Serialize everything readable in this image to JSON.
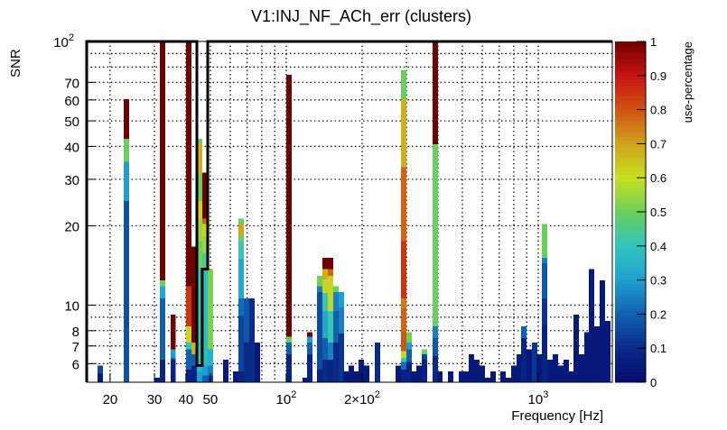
{
  "chart_data": {
    "type": "heatmap",
    "title": "V1:INJ_NF_ACh_err (clusters)",
    "xlabel": "Frequency [Hz]",
    "ylabel": "SNR",
    "zlabel": "use-percentage",
    "xscale": "log",
    "yscale": "log",
    "xlim": [
      16.15,
      1968
    ],
    "ylim": [
      5.1,
      100
    ],
    "zlim": [
      0,
      1
    ],
    "grid": true,
    "x_ticks": [
      {
        "value": 20,
        "label": "20"
      },
      {
        "value": 30,
        "label": "30"
      },
      {
        "value": 40,
        "label": "40"
      },
      {
        "value": 50,
        "label": "50"
      },
      {
        "value": 100,
        "label": "10",
        "sup": "2"
      },
      {
        "value": 200,
        "label": "2×10",
        "sup": "2"
      },
      {
        "value": 1000,
        "label": "10",
        "sup": "3"
      }
    ],
    "x_grid": [
      20,
      30,
      40,
      50,
      60,
      70,
      80,
      90,
      100,
      200,
      300,
      400,
      500,
      600,
      700,
      800,
      900,
      1000
    ],
    "y_ticks": [
      {
        "value": 6,
        "label": "6"
      },
      {
        "value": 7,
        "label": "7"
      },
      {
        "value": 8,
        "label": "8"
      },
      {
        "value": 10,
        "label": "10"
      },
      {
        "value": 20,
        "label": "20"
      },
      {
        "value": 30,
        "label": "30"
      },
      {
        "value": 40,
        "label": "40"
      },
      {
        "value": 50,
        "label": "50"
      },
      {
        "value": 60,
        "label": "60"
      },
      {
        "value": 70,
        "label": "70"
      },
      {
        "value": 100,
        "label": "10",
        "sup": "2"
      }
    ],
    "y_grid": [
      6,
      7,
      8,
      9,
      10,
      20,
      30,
      40,
      50,
      60,
      70,
      80,
      90
    ],
    "z_ticks": [
      "0",
      "0.1",
      "0.2",
      "0.3",
      "0.4",
      "0.5",
      "0.6",
      "0.7",
      "0.8",
      "0.9",
      "1"
    ],
    "colormap": [
      [
        0.0,
        "#05096a"
      ],
      [
        0.1,
        "#0a2a88"
      ],
      [
        0.2,
        "#1060b0"
      ],
      [
        0.3,
        "#1fa0d0"
      ],
      [
        0.4,
        "#2ec4c0"
      ],
      [
        0.5,
        "#6acf5c"
      ],
      [
        0.6,
        "#c6e020"
      ],
      [
        0.7,
        "#d0a41c"
      ],
      [
        0.8,
        "#d05410"
      ],
      [
        0.9,
        "#c81410"
      ],
      [
        1.0,
        "#700000"
      ]
    ],
    "bin_width_log10": 0.0209,
    "columns": [
      {
        "f": 18.3,
        "seg": [
          [
            5.5,
            0.05
          ],
          [
            5.9,
            0.15
          ]
        ]
      },
      {
        "f": 23.2,
        "seg": [
          [
            24.8,
            0.17
          ],
          [
            35,
            0.3
          ],
          [
            42.7,
            0.5
          ],
          [
            60.4,
            1.0
          ]
        ]
      },
      {
        "f": 30.7,
        "seg": [
          [
            5.3,
            0.05
          ]
        ]
      },
      {
        "f": 32.3,
        "seg": [
          [
            6.2,
            0.08
          ],
          [
            10.6,
            0.2
          ],
          [
            11.8,
            0.32
          ],
          [
            12.4,
            0.5
          ],
          [
            100,
            1.0
          ]
        ]
      },
      {
        "f": 35.6,
        "seg": [
          [
            6.2,
            0.08
          ],
          [
            6.3,
            0.2
          ],
          [
            6.8,
            0.3
          ],
          [
            9.2,
            1.0
          ]
        ]
      },
      {
        "f": 41.0,
        "seg": [
          [
            5.7,
            0.08
          ],
          [
            6.8,
            0.2
          ],
          [
            7.2,
            0.4
          ],
          [
            8.3,
            0.62
          ],
          [
            11.8,
            0.85
          ],
          [
            100,
            1.0
          ]
        ]
      },
      {
        "f": 43.1,
        "seg": [
          [
            5.9,
            0.08
          ],
          [
            6.5,
            0.2
          ],
          [
            7.2,
            0.68
          ],
          [
            16.7,
            1.0
          ]
        ]
      },
      {
        "f": 45.3,
        "seg": [
          [
            5.6,
            0.3
          ],
          [
            5.9,
            0.35
          ],
          [
            13.8,
            0.42
          ],
          [
            17.5,
            0.5
          ],
          [
            21.2,
            0.55
          ],
          [
            24.8,
            0.62
          ],
          [
            31.6,
            0.5
          ],
          [
            41,
            0.68
          ],
          [
            42.7,
            0.5
          ]
        ]
      },
      {
        "f": 47.6,
        "seg": [
          [
            5.4,
            0.2
          ],
          [
            5.9,
            0.3
          ],
          [
            13.8,
            0.38
          ],
          [
            15.8,
            0.45
          ],
          [
            18.2,
            0.55
          ],
          [
            20.3,
            0.62
          ],
          [
            21.3,
            0.78
          ],
          [
            31.8,
            1.0
          ]
        ]
      },
      {
        "f": 50.0,
        "seg": [
          [
            5.4,
            0.15
          ],
          [
            5.9,
            0.25
          ],
          [
            6.8,
            0.35
          ],
          [
            13.7,
            0.52
          ]
        ]
      },
      {
        "f": 57.5,
        "seg": [
          [
            6.2,
            0.05
          ]
        ]
      },
      {
        "f": 63.0,
        "seg": [
          [
            5.6,
            0.05
          ]
        ]
      },
      {
        "f": 66.2,
        "seg": [
          [
            5.6,
            0.08
          ],
          [
            9.1,
            0.15
          ],
          [
            10.6,
            0.22
          ],
          [
            15,
            0.32
          ],
          [
            17.5,
            0.42
          ],
          [
            18.4,
            0.5
          ],
          [
            20.3,
            0.7
          ],
          [
            21.3,
            0.5
          ]
        ]
      },
      {
        "f": 69.5,
        "seg": [
          [
            7.2,
            0.1
          ],
          [
            10.6,
            0.18
          ]
        ]
      },
      {
        "f": 73.1,
        "seg": [
          [
            10.6,
            0.1
          ]
        ]
      },
      {
        "f": 76.8,
        "seg": [
          [
            7.2,
            0.05
          ]
        ]
      },
      {
        "f": 102.5,
        "seg": [
          [
            6.5,
            0.08
          ],
          [
            7.2,
            0.2
          ],
          [
            7.6,
            0.5
          ],
          [
            74.7,
            1.0
          ]
        ]
      },
      {
        "f": 118.9,
        "seg": [
          [
            5.3,
            0.05
          ]
        ]
      },
      {
        "f": 123.9,
        "seg": [
          [
            6.5,
            0.08
          ],
          [
            7.2,
            0.2
          ],
          [
            7.6,
            0.3
          ],
          [
            7.9,
            1.0
          ]
        ]
      },
      {
        "f": 135.6,
        "seg": [
          [
            5.7,
            0.08
          ],
          [
            11.2,
            0.16
          ],
          [
            11.8,
            0.25
          ],
          [
            12.9,
            0.5
          ]
        ]
      },
      {
        "f": 142.5,
        "seg": [
          [
            6.2,
            0.1
          ],
          [
            7.5,
            0.2
          ],
          [
            9.5,
            0.32
          ],
          [
            11.1,
            0.42
          ],
          [
            12.5,
            0.62
          ],
          [
            13.7,
            0.68
          ],
          [
            15.1,
            1.0
          ]
        ]
      },
      {
        "f": 149.8,
        "seg": [
          [
            6.2,
            0.08
          ],
          [
            7.2,
            0.25
          ],
          [
            9.5,
            0.42
          ],
          [
            12.9,
            0.62
          ],
          [
            13.7,
            0.78
          ],
          [
            15.1,
            1.0
          ]
        ]
      },
      {
        "f": 157.4,
        "seg": [
          [
            7.2,
            0.1
          ],
          [
            9.5,
            0.2
          ],
          [
            11.2,
            0.25
          ],
          [
            11.8,
            0.5
          ]
        ]
      },
      {
        "f": 165.4,
        "seg": [
          [
            7.8,
            0.12
          ],
          [
            9.8,
            0.25
          ],
          [
            11.2,
            0.3
          ]
        ]
      },
      {
        "f": 172.6,
        "seg": [
          [
            5.6,
            0.05
          ]
        ]
      },
      {
        "f": 181.3,
        "seg": [
          [
            5.9,
            0.05
          ]
        ]
      },
      {
        "f": 190.5,
        "seg": [
          [
            5.6,
            0.05
          ]
        ]
      },
      {
        "f": 198.6,
        "seg": [
          [
            6.2,
            0.05
          ]
        ]
      },
      {
        "f": 208.6,
        "seg": [
          [
            5.9,
            0.05
          ]
        ]
      },
      {
        "f": 230.1,
        "seg": [
          [
            7.2,
            0.1
          ]
        ]
      },
      {
        "f": 278.4,
        "seg": [
          [
            5.9,
            0.05
          ]
        ]
      },
      {
        "f": 292.5,
        "seg": [
          [
            5.7,
            0.08
          ],
          [
            6.1,
            0.22
          ],
          [
            6.3,
            0.42
          ],
          [
            6.7,
            0.62
          ],
          [
            7.9,
            0.8
          ],
          [
            9.7,
            0.78
          ],
          [
            10.6,
            0.75
          ],
          [
            17.5,
            0.85
          ],
          [
            33.4,
            0.78
          ],
          [
            60.4,
            0.68
          ],
          [
            77.6,
            0.5
          ]
        ]
      },
      {
        "f": 307.4,
        "seg": [
          [
            6.1,
            0.08
          ],
          [
            6.8,
            0.2
          ],
          [
            7.2,
            0.3
          ],
          [
            7.9,
            0.5
          ]
        ]
      },
      {
        "f": 320.5,
        "seg": [
          [
            5.6,
            0.05
          ]
        ]
      },
      {
        "f": 336.8,
        "seg": [
          [
            5.9,
            0.05
          ]
        ]
      },
      {
        "f": 354,
        "seg": [
          [
            6.2,
            0.08
          ],
          [
            6.5,
            0.15
          ],
          [
            6.8,
            0.5
          ]
        ]
      },
      {
        "f": 390.8,
        "seg": [
          [
            6.4,
            0.1
          ],
          [
            7.5,
            0.18
          ],
          [
            8.3,
            0.25
          ],
          [
            40.7,
            0.5
          ],
          [
            100,
            1.0
          ]
        ]
      },
      {
        "f": 406.5,
        "seg": [
          [
            5.6,
            0.05
          ]
        ]
      },
      {
        "f": 449,
        "seg": [
          [
            5.6,
            0.05
          ]
        ]
      },
      {
        "f": 495.5,
        "seg": [
          [
            5.6,
            0.05
          ]
        ]
      },
      {
        "f": 521,
        "seg": [
          [
            5.6,
            0.05
          ]
        ]
      },
      {
        "f": 543,
        "seg": [
          [
            6.5,
            0.05
          ]
        ]
      },
      {
        "f": 570,
        "seg": [
          [
            6.2,
            0.05
          ]
        ]
      },
      {
        "f": 600,
        "seg": [
          [
            5.9,
            0.05
          ]
        ]
      },
      {
        "f": 630,
        "seg": [
          [
            5.3,
            0.05
          ]
        ]
      },
      {
        "f": 662,
        "seg": [
          [
            5.6,
            0.05
          ]
        ]
      },
      {
        "f": 725,
        "seg": [
          [
            5.6,
            0.05
          ]
        ]
      },
      {
        "f": 762,
        "seg": [
          [
            5.3,
            0.05
          ]
        ]
      },
      {
        "f": 800,
        "seg": [
          [
            5.9,
            0.05
          ]
        ]
      },
      {
        "f": 841,
        "seg": [
          [
            6.5,
            0.05
          ]
        ]
      },
      {
        "f": 877,
        "seg": [
          [
            7.5,
            0.08
          ],
          [
            8.3,
            0.2
          ]
        ]
      },
      {
        "f": 921,
        "seg": [
          [
            6.8,
            0.05
          ]
        ]
      },
      {
        "f": 968,
        "seg": [
          [
            7.2,
            0.12
          ]
        ]
      },
      {
        "f": 1009,
        "seg": [
          [
            6.5,
            0.05
          ]
        ]
      },
      {
        "f": 1060,
        "seg": [
          [
            8.4,
            0.08
          ],
          [
            10.6,
            0.12
          ],
          [
            14.4,
            0.18
          ],
          [
            15.1,
            0.25
          ],
          [
            20.3,
            0.5
          ]
        ]
      },
      {
        "f": 1114,
        "seg": [
          [
            6.2,
            0.05
          ]
        ]
      },
      {
        "f": 1170,
        "seg": [
          [
            6.5,
            0.05
          ]
        ]
      },
      {
        "f": 1230,
        "seg": [
          [
            5.9,
            0.05
          ]
        ]
      },
      {
        "f": 1292,
        "seg": [
          [
            6.2,
            0.05
          ]
        ]
      },
      {
        "f": 1346,
        "seg": [
          [
            5.6,
            0.05
          ]
        ]
      },
      {
        "f": 1415,
        "seg": [
          [
            9.2,
            0.05
          ]
        ]
      },
      {
        "f": 1486,
        "seg": [
          [
            6.5,
            0.05
          ]
        ]
      },
      {
        "f": 1562,
        "seg": [
          [
            7.9,
            0.05
          ]
        ]
      },
      {
        "f": 1629,
        "seg": [
          [
            13.7,
            0.05
          ]
        ]
      },
      {
        "f": 1711,
        "seg": [
          [
            8.3,
            0.05
          ]
        ]
      },
      {
        "f": 1799,
        "seg": [
          [
            12.4,
            0.05
          ]
        ]
      },
      {
        "f": 1890,
        "seg": [
          [
            8.7,
            0.05
          ]
        ]
      }
    ],
    "contour": [
      [
        16.15,
        5.1
      ],
      [
        16.15,
        100
      ],
      [
        44.2,
        100
      ],
      [
        44.2,
        5.9
      ],
      [
        46.4,
        5.9
      ],
      [
        46.4,
        13.7
      ],
      [
        48.8,
        13.7
      ],
      [
        48.8,
        100
      ],
      [
        1968,
        100
      ]
    ]
  }
}
